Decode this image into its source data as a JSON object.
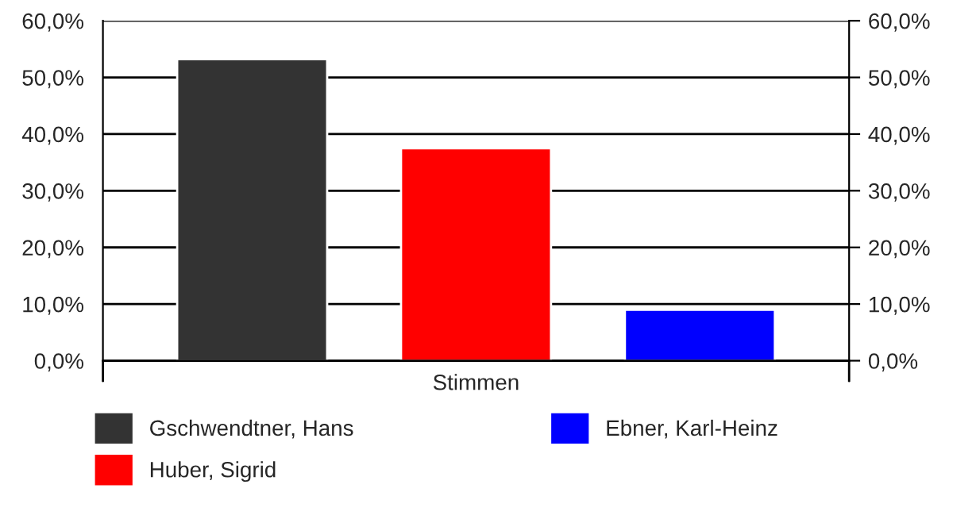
{
  "chart_data": {
    "type": "bar",
    "categories": [
      "Stimmen"
    ],
    "series": [
      {
        "name": "Gschwendtner, Hans",
        "color": "#333333",
        "values": [
          53.2
        ]
      },
      {
        "name": "Huber, Sigrid",
        "color": "#ff0000",
        "values": [
          37.5
        ]
      },
      {
        "name": "Ebner, Karl-Heinz",
        "color": "#0000ff",
        "values": [
          9.0
        ]
      }
    ],
    "ylim": [
      0,
      60
    ],
    "yticks": [
      {
        "value": 0,
        "label": "0,0%"
      },
      {
        "value": 10,
        "label": "10,0%"
      },
      {
        "value": 20,
        "label": "20,0%"
      },
      {
        "value": 30,
        "label": "30,0%"
      },
      {
        "value": 40,
        "label": "40,0%"
      },
      {
        "value": 50,
        "label": "50,0%"
      },
      {
        "value": 60,
        "label": "60,0%"
      }
    ],
    "grid": "y",
    "legend": "bottom"
  }
}
